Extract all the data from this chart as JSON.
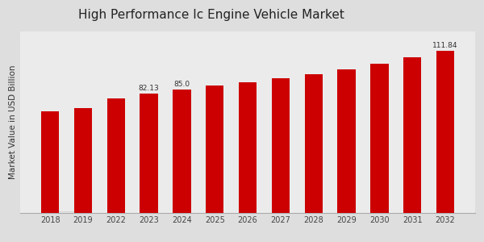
{
  "title": "High Performance Ic Engine Vehicle Market",
  "ylabel": "Market Value in USD Billion",
  "categories": [
    "2018",
    "2019",
    "2022",
    "2023",
    "2024",
    "2025",
    "2026",
    "2027",
    "2028",
    "2029",
    "2030",
    "2031",
    "2032"
  ],
  "values": [
    70.0,
    72.5,
    79.0,
    82.13,
    85.0,
    87.5,
    90.0,
    92.5,
    95.5,
    99.0,
    102.5,
    107.0,
    111.84
  ],
  "bar_color": "#CC0000",
  "bg_color_top": "#D0D0D0",
  "bg_color_bottom": "#F5F5F5",
  "title_fontsize": 11,
  "label_fontsize": 6.5,
  "tick_fontsize": 7,
  "ylabel_fontsize": 7.5,
  "ylim": [
    0,
    125
  ],
  "label_map": {
    "3": "82.13",
    "4": "85.0",
    "12": "111.84"
  },
  "bottom_bar_color": "#CC0000",
  "grid_color": "#BBBBBB",
  "spine_color": "#AAAAAA"
}
